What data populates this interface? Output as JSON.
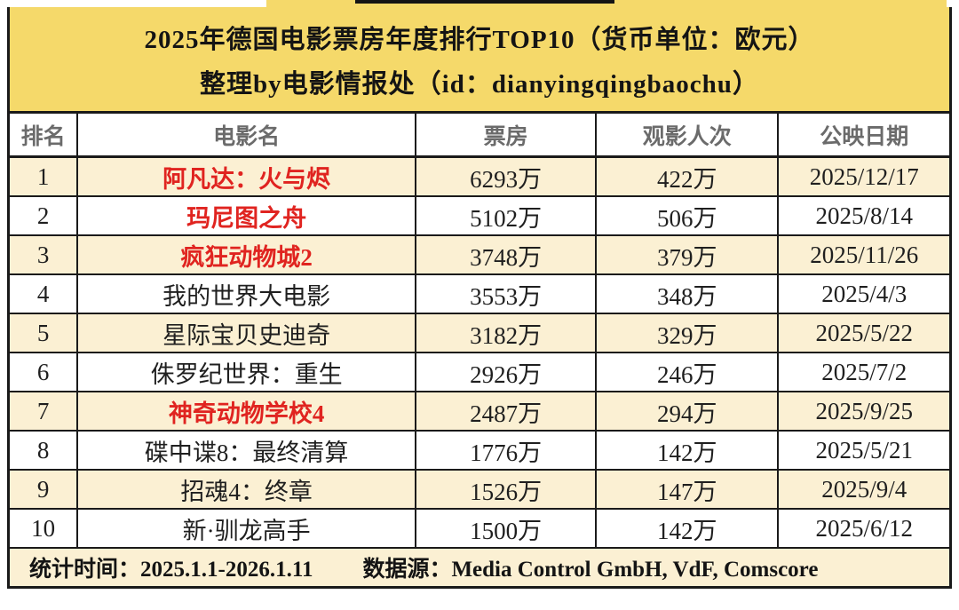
{
  "title": {
    "line1": "2025年德国电影票房年度排行TOP10（货币单位：欧元）",
    "line2": "整理by电影情报处（id：dianyingqingbaochu）"
  },
  "chart_data": {
    "type": "table",
    "title": "2025年德国电影票房年度排行TOP10（货币单位：欧元）",
    "subtitle": "整理by电影情报处（id：dianyingqingbaochu）",
    "columns": [
      "排名",
      "电影名",
      "票房",
      "观影人次",
      "公映日期"
    ],
    "rows": [
      {
        "rank": "1",
        "title": "阿凡达：火与烬",
        "box_office": "6293万",
        "admissions": "422万",
        "release_date": "2025/12/17",
        "highlight": true
      },
      {
        "rank": "2",
        "title": "玛尼图之舟",
        "box_office": "5102万",
        "admissions": "506万",
        "release_date": "2025/8/14",
        "highlight": true
      },
      {
        "rank": "3",
        "title": "疯狂动物城2",
        "box_office": "3748万",
        "admissions": "379万",
        "release_date": "2025/11/26",
        "highlight": true
      },
      {
        "rank": "4",
        "title": "我的世界大电影",
        "box_office": "3553万",
        "admissions": "348万",
        "release_date": "2025/4/3",
        "highlight": false
      },
      {
        "rank": "5",
        "title": "星际宝贝史迪奇",
        "box_office": "3182万",
        "admissions": "329万",
        "release_date": "2025/5/22",
        "highlight": false
      },
      {
        "rank": "6",
        "title": "侏罗纪世界：重生",
        "box_office": "2926万",
        "admissions": "246万",
        "release_date": "2025/7/2",
        "highlight": false
      },
      {
        "rank": "7",
        "title": "神奇动物学校4",
        "box_office": "2487万",
        "admissions": "294万",
        "release_date": "2025/9/25",
        "highlight": true
      },
      {
        "rank": "8",
        "title": "碟中谍8：最终清算",
        "box_office": "1776万",
        "admissions": "142万",
        "release_date": "2025/5/21",
        "highlight": false
      },
      {
        "rank": "9",
        "title": "招魂4：终章",
        "box_office": "1526万",
        "admissions": "147万",
        "release_date": "2025/9/4",
        "highlight": false
      },
      {
        "rank": "10",
        "title": "新·驯龙高手",
        "box_office": "1500万",
        "admissions": "142万",
        "release_date": "2025/6/12",
        "highlight": false
      }
    ]
  },
  "footer": {
    "stats_period": "统计时间：2025.1.1-2026.1.11",
    "data_source": "数据源：Media Control GmbH, VdF, Comscore"
  },
  "colors": {
    "banner_yellow": "#F5D96A",
    "row_shaded_cream": "#FBF0D3",
    "highlight_red": "#E02420",
    "header_text_gray": "#6B6B6B",
    "border_black": "#1A1A1A"
  }
}
